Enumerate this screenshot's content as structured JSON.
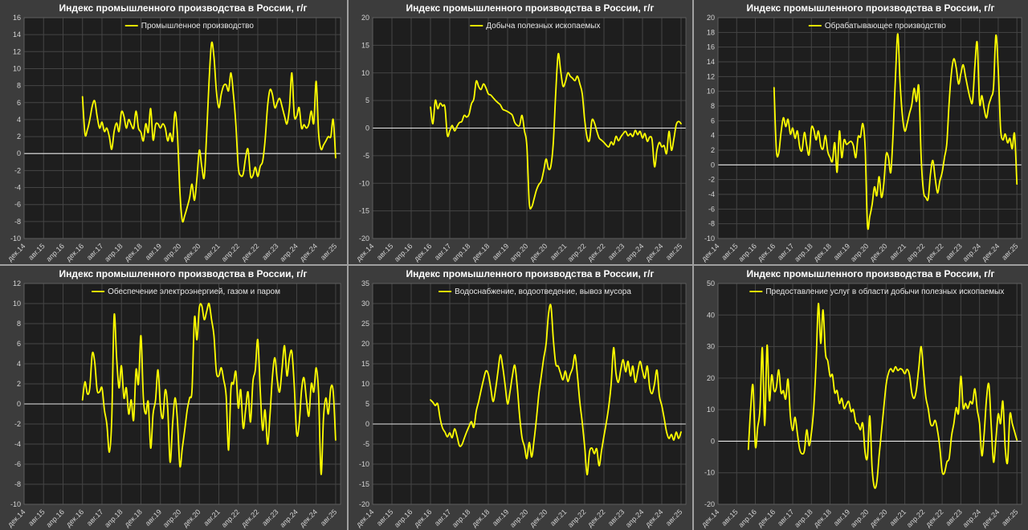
{
  "page": {
    "background": "#3c3c3c",
    "divider_color": "#a0a0a0",
    "plot_background": "#1e1e1e",
    "grid_color": "#454545",
    "zero_line_color": "#e6e6e6",
    "tick_text_color": "#d4d4d4",
    "title_color": "#ffffff",
    "series_color": "#ffff00",
    "x_tick_labels": [
      "дек.14",
      "авг.15",
      "апр.16",
      "дек.16",
      "авг.17",
      "апр.18",
      "дек.18",
      "авг.19",
      "апр.20",
      "дек.20",
      "авг.21",
      "апр.22",
      "дек.22",
      "авг.23",
      "апр.24",
      "дек.24",
      "авг.25"
    ],
    "x_tick_month_offsets": [
      0,
      8,
      16,
      24,
      32,
      40,
      48,
      56,
      64,
      72,
      80,
      88,
      96,
      104,
      112,
      120,
      128
    ],
    "x_domain_months": [
      0,
      130
    ]
  },
  "chart_data": [
    {
      "type": "line",
      "title": "Индекс промышленного производства в России, г/г",
      "legend": "Промышленное производство",
      "ylim": [
        -10,
        16
      ],
      "y_ticks": [
        16,
        14,
        12,
        10,
        8,
        6,
        4,
        2,
        0,
        -2,
        -4,
        -6,
        -8,
        -10
      ],
      "x_start_month": 24,
      "x_start_label": "дек.16",
      "x_end_label": "авг.25",
      "values": [
        6.7,
        2.3,
        2.8,
        4.0,
        5.6,
        6.2,
        4.4,
        3.0,
        3.7,
        2.6,
        3.0,
        2.0,
        0.5,
        2.6,
        3.6,
        2.6,
        4.9,
        4.4,
        3.0,
        4.0,
        3.4,
        3.0,
        5.0,
        3.0,
        2.5,
        1.5,
        3.5,
        2.5,
        5.3,
        1.6,
        3.4,
        3.5,
        3.0,
        3.5,
        3.0,
        1.5,
        2.4,
        1.5,
        4.9,
        2.3,
        -4.5,
        -7.9,
        -7.3,
        -6.3,
        -5.2,
        -3.6,
        -5.5,
        -2.9,
        0.4,
        -1.5,
        -2.8,
        2.3,
        8.5,
        13.0,
        11.4,
        7.4,
        5.4,
        7.0,
        8.0,
        8.1,
        7.4,
        9.5,
        7.0,
        3.4,
        -1.6,
        -2.6,
        -2.4,
        -0.5,
        0.5,
        -2.6,
        -2.6,
        -1.6,
        -2.7,
        -1.5,
        -0.9,
        1.5,
        5.5,
        7.5,
        7.0,
        5.4,
        6.0,
        6.5,
        5.5,
        4.4,
        3.5,
        5.4,
        9.5,
        4.5,
        4.4,
        5.4,
        3.0,
        3.4,
        3.0,
        3.5,
        5.0,
        3.6,
        8.5,
        2.4,
        0.5,
        1.0,
        1.5,
        2.0,
        2.0,
        4.0,
        -0.5
      ]
    },
    {
      "type": "line",
      "title": "Индекс промышленного производства в России, г/г",
      "legend": "Добыча полезных ископаемых",
      "ylim": [
        -20,
        20
      ],
      "y_ticks": [
        20,
        15,
        10,
        5,
        0,
        -5,
        -10,
        -15,
        -20
      ],
      "x_start_month": 24,
      "x_start_label": "дек.16",
      "x_end_label": "авг.25",
      "values": [
        3.8,
        0.8,
        5.0,
        3.5,
        4.5,
        4.0,
        3.8,
        -1.3,
        -0.5,
        0.5,
        -0.5,
        0.3,
        1.0,
        1.2,
        2.3,
        2.0,
        2.5,
        4.4,
        5.3,
        8.5,
        7.5,
        7.0,
        8.0,
        7.3,
        6.2,
        6.0,
        5.5,
        5.0,
        4.6,
        4.2,
        3.4,
        3.2,
        3.0,
        2.7,
        2.3,
        1.0,
        0.5,
        0.5,
        2.3,
        -0.5,
        -3.2,
        -13.5,
        -14.3,
        -12.8,
        -11.2,
        -10.2,
        -9.6,
        -7.7,
        -5.6,
        -7.4,
        -6.8,
        -2.5,
        6.5,
        13.4,
        10.5,
        7.6,
        8.4,
        10.0,
        9.4,
        9.0,
        8.6,
        9.4,
        8.0,
        6.2,
        1.5,
        -1.7,
        -2.2,
        1.4,
        1.0,
        -0.5,
        -1.8,
        -2.2,
        -2.6,
        -3.1,
        -3.4,
        -2.5,
        -3.0,
        -1.5,
        -2.3,
        -1.6,
        -1.0,
        -0.6,
        -1.4,
        -1.0,
        -1.5,
        -0.4,
        -1.2,
        -0.6,
        -1.8,
        -1.0,
        -2.4,
        -1.6,
        -2.2,
        -7.0,
        -4.0,
        -2.6,
        -3.4,
        -3.2,
        -4.6,
        -0.6,
        -4.0,
        -2.0,
        0.6,
        1.2,
        0.8
      ]
    },
    {
      "type": "line",
      "title": "Индекс промышленного производства в России, г/г",
      "legend": "Обрабатывающее производство",
      "ylim": [
        -10,
        20
      ],
      "y_ticks": [
        20,
        18,
        16,
        14,
        12,
        10,
        8,
        6,
        4,
        2,
        0,
        -2,
        -4,
        -6,
        -8,
        -10
      ],
      "x_start_month": 24,
      "x_start_label": "дек.16",
      "x_end_label": "авг.25",
      "values": [
        10.5,
        2.0,
        1.6,
        4.4,
        6.4,
        5.2,
        6.2,
        4.2,
        5.0,
        3.6,
        4.6,
        2.4,
        2.0,
        4.4,
        2.6,
        1.4,
        5.0,
        4.8,
        3.4,
        4.6,
        2.6,
        2.2,
        4.0,
        1.8,
        1.0,
        0.5,
        3.0,
        -1.0,
        4.6,
        1.0,
        3.4,
        2.8,
        3.0,
        3.2,
        2.6,
        1.0,
        3.8,
        3.8,
        5.6,
        2.4,
        -8.2,
        -7.0,
        -5.4,
        -3.0,
        -4.2,
        -1.6,
        -4.4,
        -2.6,
        1.4,
        1.0,
        -1.0,
        4.4,
        12.0,
        17.8,
        11.0,
        6.6,
        4.6,
        5.6,
        7.0,
        8.2,
        10.4,
        8.6,
        10.6,
        1.0,
        -3.6,
        -4.4,
        -4.6,
        -1.2,
        0.6,
        -1.8,
        -3.8,
        -2.2,
        -1.0,
        1.0,
        3.0,
        8.6,
        12.6,
        14.4,
        13.2,
        11.0,
        12.4,
        13.6,
        12.0,
        10.4,
        9.0,
        8.6,
        13.4,
        16.6,
        8.4,
        9.4,
        7.6,
        6.4,
        8.2,
        9.2,
        10.6,
        17.6,
        13.0,
        5.0,
        3.4,
        4.2,
        3.0,
        3.6,
        2.2,
        4.2,
        -2.6
      ]
    },
    {
      "type": "line",
      "title": "Индекс промышленного производства в России, г/г",
      "legend": "Обеспечение электроэнергией, газом и паром",
      "ylim": [
        -10,
        12
      ],
      "y_ticks": [
        12,
        10,
        8,
        6,
        4,
        2,
        0,
        -2,
        -4,
        -6,
        -8,
        -10
      ],
      "x_start_month": 24,
      "x_start_label": "дек.16",
      "x_end_label": "авг.25",
      "values": [
        0.4,
        2.2,
        1.0,
        1.6,
        5.0,
        4.2,
        1.4,
        1.2,
        1.6,
        -0.6,
        -2.0,
        -4.8,
        -1.6,
        8.8,
        4.6,
        1.6,
        3.8,
        0.6,
        1.6,
        -1.0,
        0.4,
        -1.6,
        3.4,
        2.0,
        6.8,
        0.6,
        -1.0,
        0.2,
        -4.4,
        -1.0,
        0.4,
        3.4,
        -0.2,
        -1.4,
        1.4,
        -0.4,
        -5.8,
        -2.0,
        0.6,
        -1.6,
        -6.2,
        -4.4,
        -2.6,
        -0.6,
        0.6,
        1.4,
        8.6,
        6.4,
        9.6,
        9.8,
        8.4,
        9.2,
        10.0,
        8.4,
        6.8,
        3.2,
        2.8,
        3.6,
        2.4,
        0.8,
        -4.6,
        1.6,
        2.0,
        3.2,
        -0.4,
        1.4,
        -2.4,
        -0.6,
        1.2,
        -1.8,
        2.2,
        3.4,
        6.4,
        1.4,
        -2.6,
        -0.6,
        -4.0,
        -1.2,
        2.6,
        4.6,
        2.4,
        1.2,
        3.6,
        5.8,
        2.8,
        4.6,
        5.2,
        1.8,
        -3.0,
        -2.0,
        1.4,
        2.6,
        0.4,
        -1.2,
        2.0,
        1.2,
        3.6,
        1.0,
        -7.0,
        -1.4,
        0.6,
        -1.0,
        1.6,
        1.2,
        -3.6
      ]
    },
    {
      "type": "line",
      "title": "Индекс промышленного производства в России, г/г",
      "legend": "Водоснабжение, водоотведение, вывоз мусора",
      "ylim": [
        -20,
        35
      ],
      "y_ticks": [
        35,
        30,
        25,
        20,
        15,
        10,
        5,
        0,
        -5,
        -10,
        -15,
        -20
      ],
      "x_start_month": 24,
      "x_start_label": "дек.16",
      "x_end_label": "авг.25",
      "values": [
        6.0,
        5.4,
        4.6,
        5.0,
        1.4,
        -1.0,
        -2.0,
        -3.2,
        -2.2,
        -3.4,
        -1.2,
        -3.0,
        -5.4,
        -5.2,
        -3.6,
        -2.0,
        -0.6,
        0.6,
        -0.8,
        3.2,
        5.6,
        8.4,
        11.0,
        13.2,
        12.4,
        9.0,
        5.6,
        8.6,
        13.0,
        17.2,
        14.2,
        9.6,
        5.0,
        8.0,
        12.0,
        14.6,
        9.4,
        2.0,
        -3.4,
        -5.6,
        -8.6,
        -4.6,
        -8.2,
        -4.0,
        1.4,
        7.6,
        12.0,
        16.4,
        20.0,
        27.4,
        29.4,
        21.0,
        15.0,
        14.4,
        12.6,
        11.0,
        13.2,
        10.6,
        12.4,
        14.0,
        17.2,
        12.0,
        5.4,
        0.4,
        -5.6,
        -12.6,
        -7.0,
        -6.0,
        -7.4,
        -6.2,
        -10.4,
        -6.6,
        -3.0,
        0.4,
        4.4,
        10.0,
        19.0,
        12.6,
        10.4,
        13.6,
        16.0,
        13.0,
        15.6,
        12.0,
        14.4,
        10.4,
        13.0,
        15.6,
        13.2,
        11.4,
        14.4,
        9.0,
        7.6,
        10.0,
        13.4,
        7.0,
        4.6,
        1.4,
        -2.0,
        -3.6,
        -2.6,
        -4.0,
        -2.0,
        -3.6,
        -2.0
      ]
    },
    {
      "type": "line",
      "title": "Индекс промышленного производства в России, г/г",
      "legend": "Предоставление услуг в области добычи полезных ископаемых",
      "ylim": [
        -20,
        50
      ],
      "y_ticks": [
        50,
        40,
        30,
        20,
        10,
        0,
        -10,
        -20
      ],
      "x_start_month": 13,
      "x_start_label": "янв.16",
      "x_end_label": "авг.25",
      "values": [
        -2.6,
        10.4,
        17.6,
        -1.6,
        4.4,
        10.4,
        29.6,
        5.0,
        30.4,
        13.0,
        21.0,
        16.0,
        17.0,
        22.6,
        15.4,
        16.0,
        13.4,
        19.6,
        8.0,
        3.4,
        7.6,
        2.4,
        -2.6,
        -4.0,
        -3.0,
        3.6,
        -1.4,
        2.6,
        10.4,
        25.0,
        43.6,
        31.0,
        41.6,
        28.0,
        25.4,
        20.6,
        21.0,
        15.4,
        16.0,
        12.0,
        13.6,
        10.4,
        11.6,
        12.6,
        9.4,
        10.0,
        6.0,
        5.4,
        3.6,
        5.6,
        -3.6,
        -5.0,
        8.0,
        -8.6,
        -14.6,
        -13.0,
        -4.6,
        3.0,
        10.6,
        18.0,
        21.6,
        23.0,
        22.0,
        23.6,
        22.4,
        23.0,
        22.6,
        21.4,
        22.8,
        21.0,
        15.4,
        13.6,
        16.6,
        23.4,
        30.0,
        22.0,
        14.0,
        10.4,
        5.6,
        5.0,
        6.6,
        3.4,
        -2.0,
        -9.6,
        -10.0,
        -6.6,
        -5.4,
        1.6,
        5.6,
        10.6,
        9.0,
        20.6,
        10.6,
        12.0,
        10.4,
        12.6,
        12.0,
        16.6,
        10.0,
        5.6,
        -4.6,
        2.6,
        13.6,
        18.0,
        5.0,
        -6.6,
        0.6,
        8.6,
        5.6,
        12.6,
        -2.0,
        -6.6,
        8.4,
        5.6,
        3.0,
        0.4
      ]
    }
  ]
}
